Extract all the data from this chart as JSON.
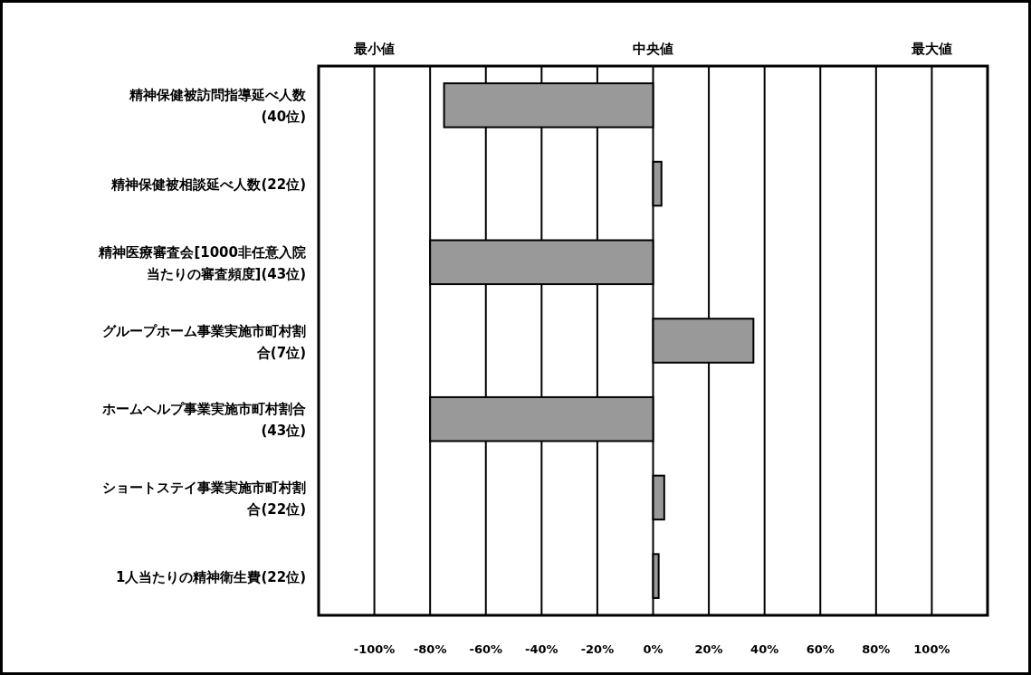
{
  "chart_data": {
    "type": "bar",
    "orientation": "horizontal",
    "categories": [
      "精神保健被訪問指導延べ人数(40位)",
      "精神保健被相談延べ人数(22位)",
      "精神医療審査会[1000非任意入院当たりの審査頻度](43位)",
      "グループホーム事業実施市町村割合(7位)",
      "ホームヘルプ事業実施市町村割合(43位)",
      "ショートステイ事業実施市町村割合(22位)",
      "1人当たりの精神衛生費(22位)"
    ],
    "values": [
      -75,
      3,
      -80,
      36,
      -80,
      4,
      2
    ],
    "color": "#999999",
    "xlim": [
      -120,
      120
    ],
    "xticks": [
      {
        "value": -100,
        "label": "-100%"
      },
      {
        "value": -80,
        "label": "-80%"
      },
      {
        "value": -60,
        "label": "-60%"
      },
      {
        "value": -40,
        "label": "-40%"
      },
      {
        "value": -20,
        "label": "-20%"
      },
      {
        "value": 0,
        "label": "0%"
      },
      {
        "value": 20,
        "label": "20%"
      },
      {
        "value": 40,
        "label": "40%"
      },
      {
        "value": 60,
        "label": "60%"
      },
      {
        "value": 80,
        "label": "80%"
      },
      {
        "value": 100,
        "label": "100%"
      }
    ],
    "annotations": [
      "最小値",
      "中央値",
      "最大値"
    ],
    "grid": "x"
  }
}
